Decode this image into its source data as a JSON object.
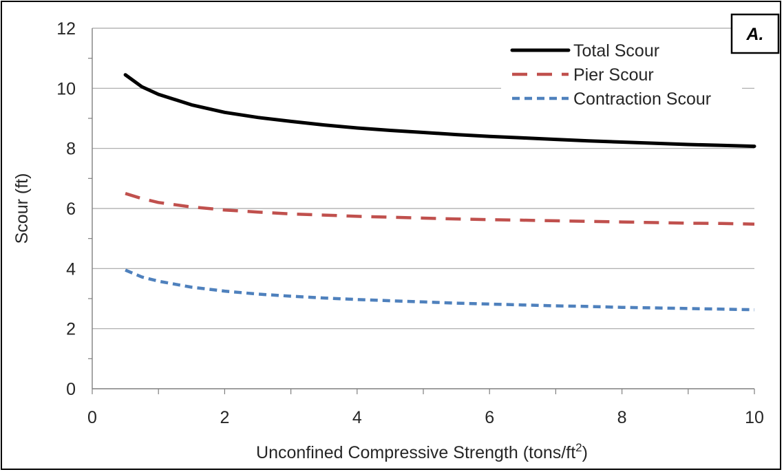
{
  "chart_data": {
    "type": "line",
    "panel_label": "A.",
    "xlabel": "Unconfined Compressive Strength (tons/ft",
    "xlabel_superscript": "2",
    "xlabel_suffix": ")",
    "ylabel": "Scour (ft)",
    "xlim": [
      0,
      10
    ],
    "ylim": [
      0,
      12
    ],
    "x_ticks": [
      0,
      2,
      4,
      6,
      8,
      10
    ],
    "y_ticks": [
      0,
      2,
      4,
      6,
      8,
      10,
      12
    ],
    "grid": "horizontal",
    "legend_position": "top-right",
    "series": [
      {
        "name": "Total Scour",
        "color": "#000000",
        "style": "solid",
        "x": [
          0.5,
          0.75,
          1,
          1.5,
          2,
          2.5,
          3,
          3.5,
          4,
          4.5,
          5,
          5.5,
          6,
          6.5,
          7,
          7.5,
          8,
          8.5,
          9,
          9.5,
          10
        ],
        "y": [
          10.45,
          10.05,
          9.8,
          9.45,
          9.2,
          9.03,
          8.9,
          8.78,
          8.68,
          8.6,
          8.53,
          8.46,
          8.4,
          8.35,
          8.3,
          8.25,
          8.21,
          8.17,
          8.13,
          8.1,
          8.07
        ]
      },
      {
        "name": "Pier Scour",
        "color": "#c0504d",
        "style": "dashed",
        "x": [
          0.5,
          0.75,
          1,
          1.5,
          2,
          2.5,
          3,
          3.5,
          4,
          4.5,
          5,
          5.5,
          6,
          6.5,
          7,
          7.5,
          8,
          8.5,
          9,
          9.5,
          10
        ],
        "y": [
          6.5,
          6.33,
          6.2,
          6.05,
          5.95,
          5.88,
          5.82,
          5.78,
          5.74,
          5.71,
          5.68,
          5.65,
          5.63,
          5.61,
          5.59,
          5.57,
          5.55,
          5.53,
          5.51,
          5.5,
          5.48
        ]
      },
      {
        "name": "Contraction Scour",
        "color": "#4f81bd",
        "style": "dotted",
        "x": [
          0.5,
          0.75,
          1,
          1.5,
          2,
          2.5,
          3,
          3.5,
          4,
          4.5,
          5,
          5.5,
          6,
          6.5,
          7,
          7.5,
          8,
          8.5,
          9,
          9.5,
          10
        ],
        "y": [
          3.95,
          3.72,
          3.58,
          3.38,
          3.25,
          3.15,
          3.08,
          3.02,
          2.97,
          2.93,
          2.89,
          2.85,
          2.82,
          2.79,
          2.76,
          2.74,
          2.71,
          2.69,
          2.67,
          2.65,
          2.63
        ]
      }
    ]
  }
}
